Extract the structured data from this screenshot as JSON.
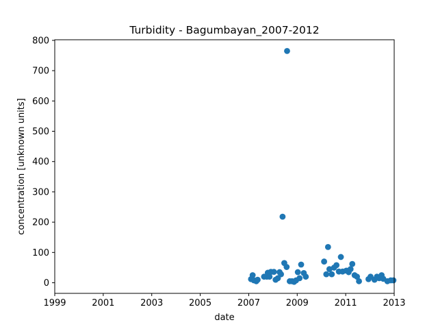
{
  "chart_data": {
    "type": "scatter",
    "title": "Turbidity - Bagumbayan_2007-2012",
    "xlabel": "date",
    "ylabel": "concentration [unknown units]",
    "x_ticks": [
      "1999",
      "2001",
      "2003",
      "2005",
      "2007",
      "2009",
      "2011",
      "2013"
    ],
    "y_ticks": [
      "0",
      "100",
      "200",
      "300",
      "400",
      "500",
      "600",
      "700",
      "800"
    ],
    "xlim": [
      "1999-01-01",
      "2013-01-01"
    ],
    "ylim": [
      -35,
      802
    ],
    "grid": false,
    "marker_color": "#1f77b4",
    "series": [
      {
        "points": [
          [
            "2007-02-05",
            12
          ],
          [
            "2007-03-01",
            25
          ],
          [
            "2007-03-20",
            8
          ],
          [
            "2007-04-25",
            5
          ],
          [
            "2007-05-15",
            10
          ],
          [
            "2007-08-20",
            20
          ],
          [
            "2007-10-01",
            20
          ],
          [
            "2007-10-15",
            33
          ],
          [
            "2007-11-10",
            20
          ],
          [
            "2007-12-01",
            36
          ],
          [
            "2008-01-15",
            36
          ],
          [
            "2008-02-10",
            10
          ],
          [
            "2008-03-15",
            15
          ],
          [
            "2008-04-10",
            35
          ],
          [
            "2008-05-01",
            28
          ],
          [
            "2008-05-25",
            218
          ],
          [
            "2008-06-20",
            65
          ],
          [
            "2008-07-25",
            52
          ],
          [
            "2008-08-01",
            765
          ],
          [
            "2008-09-10",
            5
          ],
          [
            "2008-10-15",
            5
          ],
          [
            "2008-11-15",
            3
          ],
          [
            "2008-12-15",
            8
          ],
          [
            "2009-01-10",
            35
          ],
          [
            "2009-02-05",
            15
          ],
          [
            "2009-03-01",
            60
          ],
          [
            "2009-04-10",
            32
          ],
          [
            "2009-05-10",
            20
          ],
          [
            "2010-02-10",
            70
          ],
          [
            "2010-03-15",
            28
          ],
          [
            "2010-04-10",
            118
          ],
          [
            "2010-05-01",
            45
          ],
          [
            "2010-06-05",
            28
          ],
          [
            "2010-07-10",
            50
          ],
          [
            "2010-08-15",
            58
          ],
          [
            "2010-09-20",
            37
          ],
          [
            "2010-10-20",
            85
          ],
          [
            "2010-11-15",
            37
          ],
          [
            "2011-01-10",
            40
          ],
          [
            "2011-02-15",
            35
          ],
          [
            "2011-03-15",
            45
          ],
          [
            "2011-04-10",
            62
          ],
          [
            "2011-05-15",
            25
          ],
          [
            "2011-06-20",
            20
          ],
          [
            "2011-07-20",
            5
          ],
          [
            "2011-12-10",
            12
          ],
          [
            "2012-01-10",
            20
          ],
          [
            "2012-03-10",
            10
          ],
          [
            "2012-04-15",
            20
          ],
          [
            "2012-05-20",
            15
          ],
          [
            "2012-06-25",
            25
          ],
          [
            "2012-07-20",
            13
          ],
          [
            "2012-09-20",
            5
          ],
          [
            "2012-11-10",
            8
          ],
          [
            "2012-12-20",
            8
          ]
        ]
      }
    ]
  }
}
